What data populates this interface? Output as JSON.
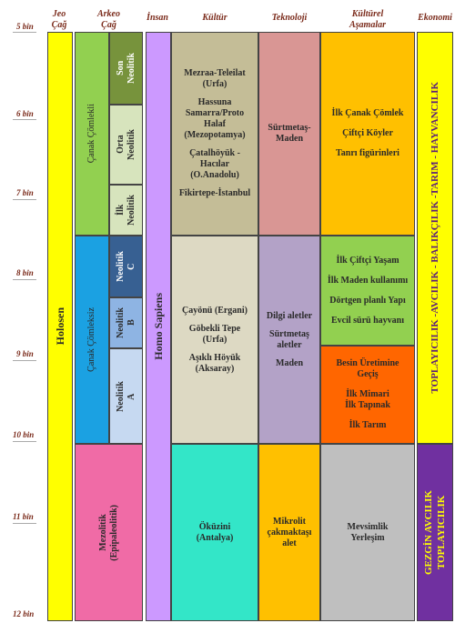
{
  "headers": {
    "jeo": [
      "Jeo",
      "Çağ"
    ],
    "arkeo": [
      "Arkeo",
      "Çağ"
    ],
    "insan": [
      "İnsan"
    ],
    "kultur": [
      "Kültür"
    ],
    "teknoloji": [
      "Teknoloji"
    ],
    "kulturel": [
      "Kültürel",
      "Aşamalar"
    ],
    "ekonomi": [
      "Ekonomi"
    ]
  },
  "ticks": [
    "5 bin",
    "6 bin",
    "7 bin",
    "8 bin",
    "9 bin",
    "10 bin",
    "11 bin",
    "12 bin"
  ],
  "jeo_cag": {
    "label": "Holosen",
    "color": "#ffff00"
  },
  "arkeo_cag": {
    "canak_comlekli": {
      "label": "Çanak Çömlekli",
      "color": "#92d050"
    },
    "son_neolitik": {
      "lines": [
        "Son",
        "Neolitik"
      ],
      "color": "#77933c"
    },
    "orta_neolitik": {
      "lines": [
        "Orta",
        "Neolitik"
      ],
      "color": "#d7e4bd"
    },
    "ilk_neolitik": {
      "lines": [
        "İlk",
        "Neolitik"
      ],
      "color": "#d7e4bd"
    },
    "canak_comleksiz": {
      "label": "Çanak Çömleksiz",
      "color": "#1ba1e2"
    },
    "neolitik_c": {
      "lines": [
        "Neolitik",
        "C"
      ],
      "color": "#376092"
    },
    "neolitik_b": {
      "lines": [
        "Neolitik",
        "B"
      ],
      "color": "#8eb4e3"
    },
    "neolitik_a": {
      "lines": [
        "Neolitik",
        "A"
      ],
      "color": "#c6d9f1"
    },
    "mezolitik": {
      "lines": [
        "Mezolitik",
        "(Epipaleolitik)"
      ],
      "color": "#f06ba6"
    }
  },
  "insan": {
    "label": "Homo Sapiens",
    "color": "#cc99ff"
  },
  "kultur": {
    "upper": {
      "lines": [
        "Mezraa-Teleilat",
        "(Urfa)",
        "",
        "Hassuna",
        "Samarra/Proto",
        "Halaf",
        "(Mezopotamya)",
        "",
        "Çatalhöyük -",
        "Hacılar",
        "(O.Anadolu)",
        "",
        "Fikirtepe-İstanbul"
      ],
      "color": "#c4bd97"
    },
    "middle": {
      "lines": [
        "Çayönü (Ergani)",
        "",
        "Göbekli Tepe",
        "(Urfa)",
        "",
        "Aşıklı Höyük",
        "(Aksaray)"
      ],
      "color": "#ddd9c3"
    },
    "lower": {
      "lines": [
        "Öküzini",
        "(Antalya)"
      ],
      "color": "#33e6c8"
    }
  },
  "teknoloji": {
    "upper": {
      "lines": [
        "Sürtmetaş-",
        "Maden"
      ],
      "color": "#d99694"
    },
    "middle": {
      "lines": [
        "Dilgi aletler",
        "",
        "Sürtmetaş",
        "aletler",
        "",
        "Maden"
      ],
      "color": "#b3a2c7"
    },
    "lower": {
      "lines": [
        "Mikrolit",
        "çakmaktaşı",
        "alet"
      ],
      "color": "#ffc000"
    }
  },
  "kulturel_asamalar": {
    "upper": {
      "lines": [
        "İlk Çanak Çömlek",
        "",
        "Çiftçi Köyler",
        "",
        "Tanrı figürinleri"
      ],
      "color": "#ffc000"
    },
    "green": {
      "lines": [
        "İlk Çiftçi Yaşam",
        "",
        "İlk Maden kullanımı",
        "",
        "Dörtgen planlı Yapı",
        "",
        "Evcil sürü hayvanı"
      ],
      "color": "#92d050"
    },
    "orange": {
      "lines": [
        "Besin Üretimine",
        "Geçiş",
        "",
        "İlk Mimari",
        "İlk Tapınak",
        "",
        "İlk Tarım"
      ],
      "color": "#ff6600"
    },
    "lower": {
      "lines": [
        "Mevsimlik",
        "Yerleşim"
      ],
      "color": "#bfbfbf"
    }
  },
  "ekonomi": {
    "upper": {
      "label": "TOPLAYICILIK -AVCILIK - BALIKÇILIK -TARIM - HAYVANCILIK",
      "color": "#ffff00",
      "text_color": "#5b1e7a"
    },
    "lower": {
      "lines": [
        "GEZGİN AVCILIK",
        "TOPLAYICILIK"
      ],
      "color": "#7030a0",
      "text_color": "#ffff00"
    }
  }
}
